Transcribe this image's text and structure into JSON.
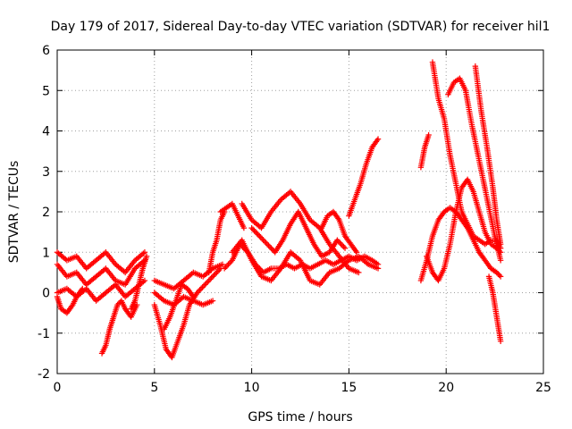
{
  "chart_data": {
    "type": "scatter",
    "title": "Day 179 of 2017, Sidereal Day-to-day VTEC variation (SDTVAR) for receiver hil1",
    "xlabel": "GPS time / hours",
    "ylabel": "SDTVAR / TECUs",
    "xlim": [
      0,
      25
    ],
    "ylim": [
      -2,
      6
    ],
    "xticks": [
      "0",
      "5",
      "10",
      "15",
      "20",
      "25"
    ],
    "yticks": [
      "-2",
      "-1",
      "0",
      "1",
      "2",
      "3",
      "4",
      "5",
      "6"
    ],
    "grid": true,
    "marker": "plus",
    "color": "#ff0000",
    "series": [
      {
        "x": [
          0.0,
          0.5,
          1.0,
          1.5,
          2.0,
          2.5,
          3.0,
          3.5,
          4.0,
          4.5
        ],
        "y": [
          1.0,
          0.8,
          0.9,
          0.6,
          0.8,
          1.0,
          0.7,
          0.5,
          0.8,
          1.0
        ]
      },
      {
        "x": [
          0.0,
          0.5,
          1.0,
          1.5,
          2.0,
          2.5,
          3.0,
          3.5,
          4.0,
          4.5
        ],
        "y": [
          0.7,
          0.4,
          0.5,
          0.2,
          0.4,
          0.6,
          0.3,
          0.2,
          0.6,
          0.8
        ]
      },
      {
        "x": [
          0.0,
          0.5,
          1.0,
          1.5,
          2.0,
          2.5,
          3.0,
          3.5,
          4.0,
          4.5
        ],
        "y": [
          0.0,
          0.1,
          -0.1,
          0.1,
          -0.2,
          0.0,
          0.2,
          -0.1,
          0.1,
          0.3
        ]
      },
      {
        "x": [
          0.0,
          0.2,
          0.5,
          0.8,
          1.0,
          1.3
        ],
        "y": [
          -0.1,
          -0.4,
          -0.5,
          -0.3,
          -0.1,
          0.1
        ]
      },
      {
        "x": [
          2.3,
          2.5,
          2.7,
          2.9,
          3.1,
          3.3,
          3.5,
          3.8,
          4.1
        ],
        "y": [
          -1.5,
          -1.3,
          -0.9,
          -0.6,
          -0.3,
          -0.2,
          -0.4,
          -0.6,
          -0.3
        ]
      },
      {
        "x": [
          3.8,
          4.0,
          4.2,
          4.4,
          4.6
        ],
        "y": [
          -0.4,
          -0.2,
          0.2,
          0.6,
          0.9
        ]
      },
      {
        "x": [
          5.0,
          5.3,
          5.6,
          5.9,
          6.2,
          6.5,
          6.8,
          7.2,
          7.6,
          8.0,
          8.4
        ],
        "y": [
          -0.3,
          -0.8,
          -1.4,
          -1.6,
          -1.2,
          -0.8,
          -0.3,
          0.0,
          0.2,
          0.4,
          0.6
        ]
      },
      {
        "x": [
          5.0,
          5.5,
          6.0,
          6.5,
          7.0,
          7.5,
          8.0,
          8.5
        ],
        "y": [
          0.3,
          0.2,
          0.1,
          0.3,
          0.5,
          0.4,
          0.6,
          0.7
        ]
      },
      {
        "x": [
          5.0,
          5.5,
          6.0,
          6.5,
          7.0,
          7.5,
          8.0
        ],
        "y": [
          0.0,
          -0.2,
          -0.3,
          -0.1,
          -0.2,
          -0.3,
          -0.2
        ]
      },
      {
        "x": [
          5.5,
          5.8,
          6.1,
          6.4,
          6.7,
          7.0
        ],
        "y": [
          -0.9,
          -0.6,
          -0.2,
          0.2,
          0.1,
          -0.1
        ]
      },
      {
        "x": [
          7.8,
          8.0,
          8.2,
          8.4,
          8.6
        ],
        "y": [
          0.5,
          1.0,
          1.3,
          1.8,
          2.0
        ]
      },
      {
        "x": [
          8.4,
          8.7,
          9.0,
          9.3,
          9.6
        ],
        "y": [
          2.0,
          2.1,
          2.2,
          1.9,
          1.6
        ]
      },
      {
        "x": [
          8.6,
          9.0,
          9.4,
          9.8,
          10.2,
          10.6,
          11.0,
          11.4,
          11.8,
          12.2,
          12.6,
          13.0,
          13.4,
          13.8,
          14.2,
          14.6,
          15.0,
          15.4,
          15.8,
          16.2,
          16.5
        ],
        "y": [
          0.6,
          0.8,
          1.2,
          1.0,
          0.7,
          0.5,
          0.6,
          0.6,
          0.7,
          0.6,
          0.7,
          0.6,
          0.7,
          0.8,
          0.7,
          0.8,
          0.9,
          0.8,
          0.9,
          0.8,
          0.7
        ]
      },
      {
        "x": [
          9.0,
          9.5,
          10.0,
          10.5,
          11.0,
          11.5,
          12.0,
          12.5,
          13.0,
          13.5,
          14.0,
          14.5,
          15.0,
          15.5,
          16.0,
          16.5
        ],
        "y": [
          1.0,
          1.3,
          0.8,
          0.4,
          0.3,
          0.6,
          1.0,
          0.8,
          0.3,
          0.2,
          0.5,
          0.6,
          0.8,
          0.9,
          0.7,
          0.6
        ]
      },
      {
        "x": [
          9.5,
          10.0,
          10.5,
          11.0,
          11.5,
          12.0,
          12.5,
          13.0,
          13.5,
          14.0,
          14.5,
          15.0,
          15.5
        ],
        "y": [
          2.2,
          1.8,
          1.6,
          2.0,
          2.3,
          2.5,
          2.2,
          1.8,
          1.6,
          1.2,
          0.9,
          0.6,
          0.5
        ]
      },
      {
        "x": [
          10.0,
          10.4,
          10.8,
          11.2,
          11.6,
          12.0,
          12.4,
          12.8,
          13.2,
          13.6,
          14.0,
          14.4,
          14.8
        ],
        "y": [
          1.6,
          1.4,
          1.2,
          1.0,
          1.3,
          1.7,
          2.0,
          1.6,
          1.2,
          0.9,
          1.0,
          1.3,
          1.1
        ]
      },
      {
        "x": [
          13.6,
          13.9,
          14.2,
          14.5,
          14.8,
          15.1,
          15.4
        ],
        "y": [
          1.6,
          1.9,
          2.0,
          1.8,
          1.4,
          1.2,
          1.0
        ]
      },
      {
        "x": [
          15.0,
          15.3,
          15.6,
          15.9,
          16.2,
          16.5
        ],
        "y": [
          1.9,
          2.3,
          2.7,
          3.2,
          3.6,
          3.8
        ]
      },
      {
        "x": [
          18.7,
          18.9,
          19.1
        ],
        "y": [
          3.1,
          3.6,
          3.9
        ]
      },
      {
        "x": [
          18.7,
          19.0,
          19.3,
          19.6,
          19.9,
          20.2,
          20.5,
          20.8,
          21.1,
          21.4,
          21.7,
          22.0,
          22.3,
          22.6,
          22.8
        ],
        "y": [
          0.3,
          0.8,
          1.4,
          1.8,
          2.0,
          2.1,
          2.0,
          1.8,
          1.6,
          1.3,
          1.0,
          0.8,
          0.6,
          0.5,
          0.4
        ]
      },
      {
        "x": [
          19.0,
          19.3,
          19.6,
          19.9,
          20.2,
          20.5,
          20.8,
          21.1,
          21.4,
          21.7,
          22.0,
          22.3,
          22.6,
          22.8
        ],
        "y": [
          0.9,
          0.5,
          0.3,
          0.6,
          1.2,
          2.0,
          2.6,
          2.8,
          2.5,
          2.0,
          1.5,
          1.2,
          1.1,
          1.0
        ]
      },
      {
        "x": [
          19.3,
          19.6,
          19.9,
          20.2,
          20.5,
          20.8,
          21.1,
          21.4,
          21.7,
          22.0,
          22.3,
          22.6,
          22.8
        ],
        "y": [
          5.7,
          4.8,
          4.3,
          3.4,
          2.7,
          2.0,
          1.7,
          1.4,
          1.3,
          1.2,
          1.3,
          1.3,
          1.1
        ]
      },
      {
        "x": [
          20.1,
          20.4,
          20.7,
          21.0,
          21.3,
          21.6,
          21.9,
          22.2,
          22.5,
          22.8
        ],
        "y": [
          4.9,
          5.2,
          5.3,
          5.0,
          4.2,
          3.5,
          2.8,
          2.1,
          1.4,
          0.8
        ]
      },
      {
        "x": [
          21.5,
          21.8,
          22.1,
          22.4,
          22.6,
          22.8
        ],
        "y": [
          5.6,
          4.5,
          3.6,
          2.6,
          1.8,
          1.2
        ]
      },
      {
        "x": [
          22.2,
          22.4,
          22.6,
          22.8
        ],
        "y": [
          0.4,
          0.0,
          -0.6,
          -1.2
        ]
      }
    ]
  }
}
